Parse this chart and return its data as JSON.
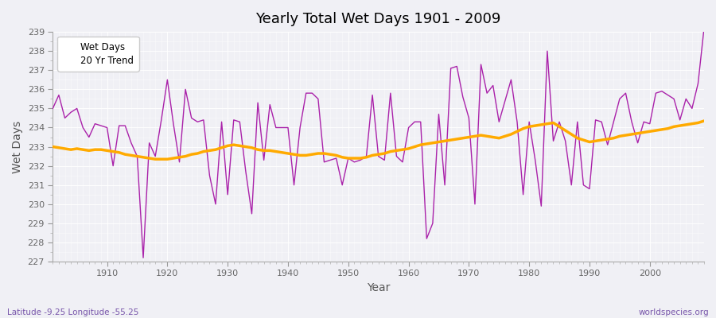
{
  "title": "Yearly Total Wet Days 1901 - 2009",
  "xlabel": "Year",
  "ylabel": "Wet Days",
  "subtitle_left": "Latitude -9.25 Longitude -55.25",
  "subtitle_right": "worldspecies.org",
  "ylim": [
    227,
    239
  ],
  "xlim": [
    1901,
    2009
  ],
  "legend_labels": [
    "Wet Days",
    "20 Yr Trend"
  ],
  "wet_days_color": "#aa22aa",
  "trend_color": "#ffaa00",
  "bg_color": "#f0f0f5",
  "fig_bg_color": "#f0f0f5",
  "years": [
    1901,
    1902,
    1903,
    1904,
    1905,
    1906,
    1907,
    1908,
    1909,
    1910,
    1911,
    1912,
    1913,
    1914,
    1915,
    1916,
    1917,
    1918,
    1919,
    1920,
    1921,
    1922,
    1923,
    1924,
    1925,
    1926,
    1927,
    1928,
    1929,
    1930,
    1931,
    1932,
    1933,
    1934,
    1935,
    1936,
    1937,
    1938,
    1939,
    1940,
    1941,
    1942,
    1943,
    1944,
    1945,
    1946,
    1947,
    1948,
    1949,
    1950,
    1951,
    1952,
    1953,
    1954,
    1955,
    1956,
    1957,
    1958,
    1959,
    1960,
    1961,
    1962,
    1963,
    1964,
    1965,
    1966,
    1967,
    1968,
    1969,
    1970,
    1971,
    1972,
    1973,
    1974,
    1975,
    1976,
    1977,
    1978,
    1979,
    1980,
    1981,
    1982,
    1983,
    1984,
    1985,
    1986,
    1987,
    1988,
    1989,
    1990,
    1991,
    1992,
    1993,
    1994,
    1995,
    1996,
    1997,
    1998,
    1999,
    2000,
    2001,
    2002,
    2003,
    2004,
    2005,
    2006,
    2007,
    2008,
    2009
  ],
  "wet_days": [
    235.0,
    235.7,
    234.5,
    234.8,
    235.0,
    234.0,
    233.5,
    234.2,
    234.1,
    234.0,
    232.0,
    234.1,
    234.1,
    233.2,
    232.5,
    227.2,
    233.2,
    232.5,
    234.4,
    236.5,
    234.2,
    232.2,
    236.0,
    234.5,
    234.3,
    234.4,
    231.5,
    230.0,
    234.3,
    230.5,
    234.4,
    234.3,
    231.7,
    229.5,
    235.3,
    232.3,
    235.2,
    234.0,
    234.0,
    234.0,
    231.0,
    234.0,
    235.8,
    235.8,
    235.5,
    232.2,
    232.3,
    232.4,
    231.0,
    232.4,
    232.2,
    232.3,
    232.5,
    235.7,
    232.5,
    232.3,
    235.8,
    232.5,
    232.2,
    234.0,
    234.3,
    234.3,
    228.2,
    229.0,
    234.7,
    231.0,
    237.1,
    237.2,
    235.6,
    234.5,
    230.0,
    237.3,
    235.8,
    236.2,
    234.3,
    235.4,
    236.5,
    234.3,
    230.5,
    234.3,
    232.3,
    229.9,
    238.0,
    233.3,
    234.3,
    233.3,
    231.0,
    234.3,
    231.0,
    230.8,
    234.4,
    234.3,
    233.1,
    234.3,
    235.5,
    235.8,
    234.3,
    233.2,
    234.3,
    234.2,
    235.8,
    235.9,
    235.7,
    235.5,
    234.4,
    235.5,
    235.0,
    236.3,
    239.2
  ],
  "trend": [
    233.0,
    232.95,
    232.9,
    232.85,
    232.9,
    232.85,
    232.8,
    232.85,
    232.85,
    232.8,
    232.75,
    232.7,
    232.6,
    232.55,
    232.5,
    232.45,
    232.4,
    232.35,
    232.35,
    232.35,
    232.4,
    232.45,
    232.5,
    232.6,
    232.65,
    232.75,
    232.8,
    232.85,
    232.95,
    233.05,
    233.1,
    233.05,
    233.0,
    232.95,
    232.85,
    232.8,
    232.8,
    232.75,
    232.7,
    232.65,
    232.6,
    232.55,
    232.55,
    232.6,
    232.65,
    232.65,
    232.6,
    232.55,
    232.45,
    232.4,
    232.4,
    232.4,
    232.45,
    232.55,
    232.6,
    232.65,
    232.75,
    232.8,
    232.85,
    232.9,
    233.0,
    233.1,
    233.15,
    233.2,
    233.25,
    233.3,
    233.35,
    233.4,
    233.45,
    233.5,
    233.55,
    233.6,
    233.55,
    233.5,
    233.45,
    233.55,
    233.65,
    233.8,
    233.95,
    234.05,
    234.1,
    234.15,
    234.2,
    234.25,
    234.05,
    233.85,
    233.65,
    233.45,
    233.35,
    233.25,
    233.3,
    233.35,
    233.4,
    233.45,
    233.55,
    233.6,
    233.65,
    233.7,
    233.75,
    233.8,
    233.85,
    233.9,
    233.95,
    234.05,
    234.1,
    234.15,
    234.2,
    234.25,
    234.35
  ]
}
